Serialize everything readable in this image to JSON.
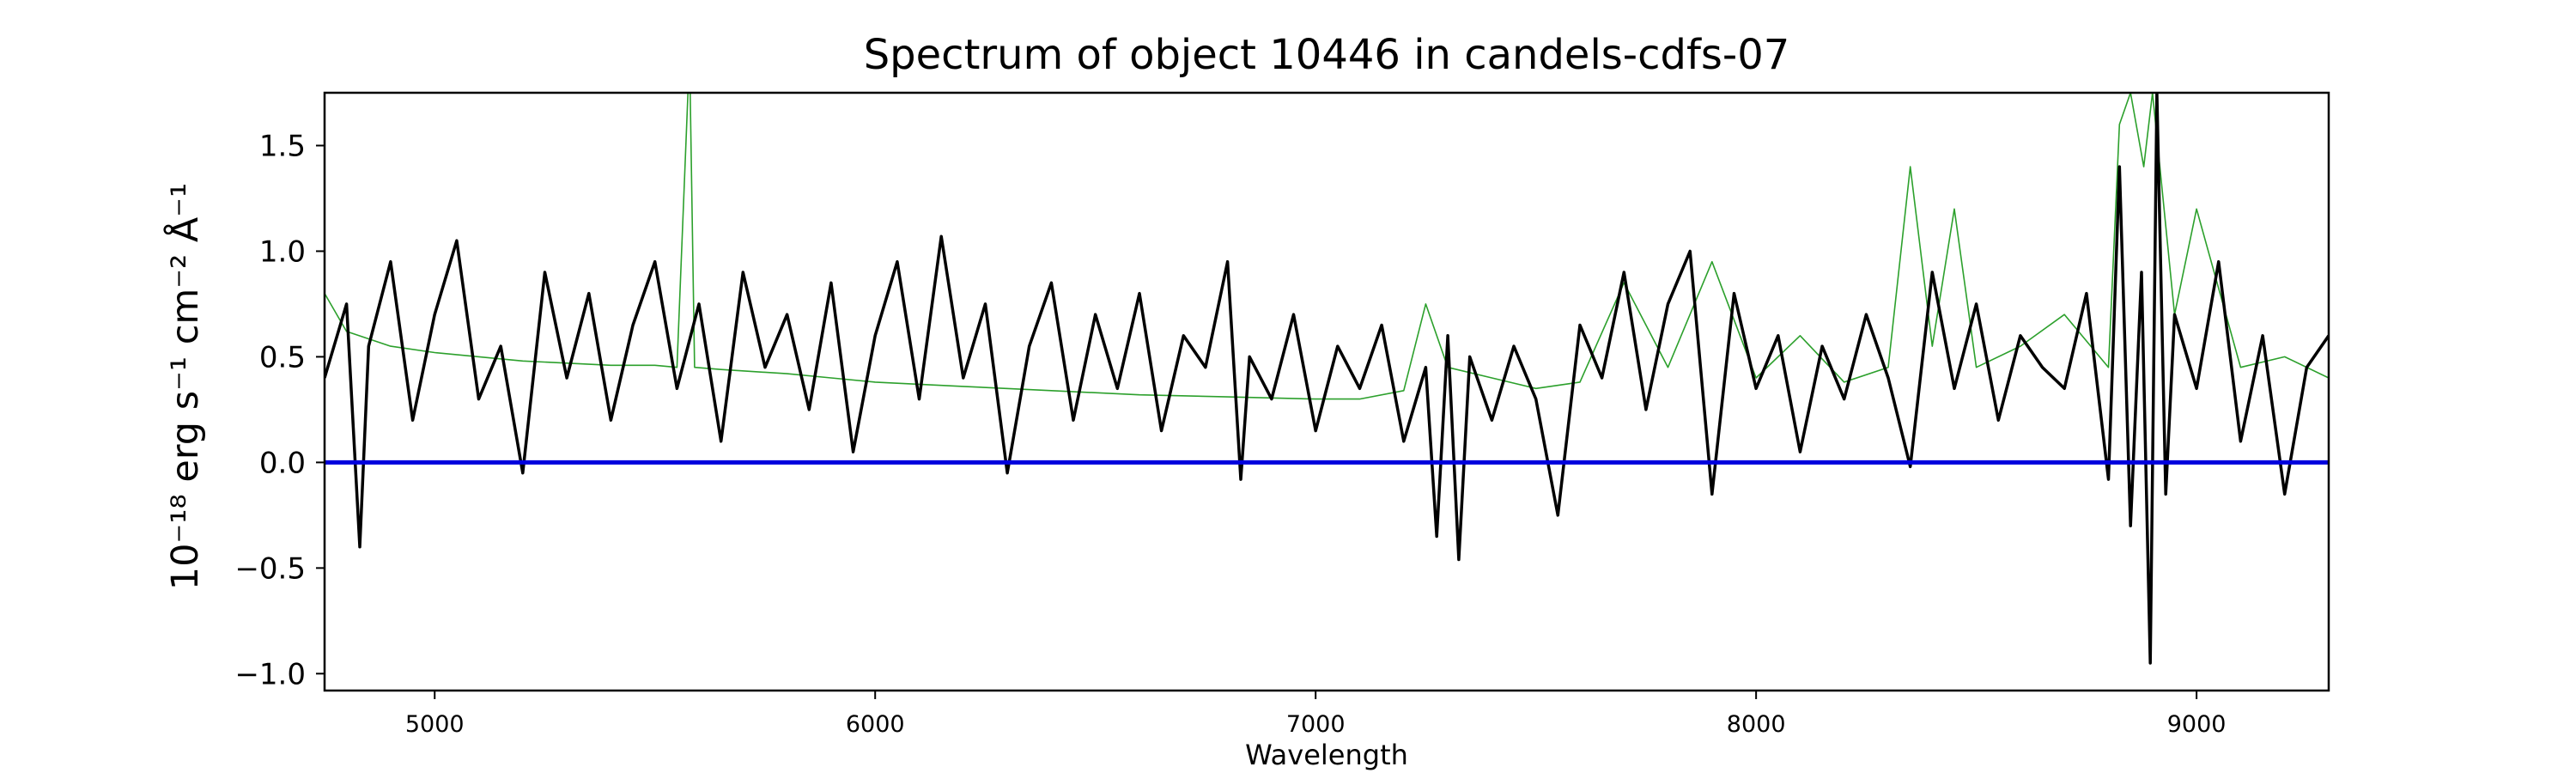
{
  "chart_data": {
    "type": "line",
    "title": "Spectrum of object 10446 in candels-cdfs-07",
    "xlabel": "Wavelength",
    "ylabel": "10⁻¹⁸ erg s⁻¹ cm⁻² Å⁻¹",
    "xlim": [
      4750,
      9300
    ],
    "ylim": [
      -1.08,
      1.75
    ],
    "x_ticks": [
      5000,
      6000,
      7000,
      8000,
      9000
    ],
    "x_tick_labels": [
      "5000",
      "6000",
      "7000",
      "8000",
      "9000"
    ],
    "y_ticks": [
      -1.0,
      -0.5,
      0.0,
      0.5,
      1.0,
      1.5
    ],
    "y_tick_labels": [
      "−1.0",
      "−0.5",
      "0.0",
      "0.5",
      "1.0",
      "1.5"
    ],
    "grid": false,
    "colors": {
      "flux": "#000000",
      "model": "#2ca02c",
      "zero": "#0000dd"
    },
    "series": [
      {
        "role": "flux",
        "x": [
          4750,
          4800,
          4830,
          4850,
          4900,
          4950,
          5000,
          5050,
          5100,
          5150,
          5200,
          5250,
          5300,
          5350,
          5400,
          5450,
          5500,
          5550,
          5600,
          5650,
          5700,
          5750,
          5800,
          5850,
          5900,
          5950,
          6000,
          6050,
          6100,
          6150,
          6200,
          6250,
          6300,
          6350,
          6400,
          6450,
          6500,
          6550,
          6600,
          6650,
          6700,
          6750,
          6800,
          6830,
          6850,
          6900,
          6950,
          7000,
          7050,
          7100,
          7150,
          7200,
          7250,
          7275,
          7300,
          7325,
          7350,
          7400,
          7450,
          7500,
          7550,
          7600,
          7650,
          7700,
          7750,
          7800,
          7850,
          7900,
          7950,
          8000,
          8050,
          8100,
          8150,
          8200,
          8250,
          8300,
          8350,
          8400,
          8450,
          8500,
          8550,
          8600,
          8650,
          8700,
          8750,
          8800,
          8825,
          8850,
          8875,
          8895,
          8910,
          8930,
          8950,
          9000,
          9050,
          9100,
          9150,
          9200,
          9250,
          9300
        ],
        "y": [
          0.4,
          0.75,
          -0.4,
          0.55,
          0.95,
          0.2,
          0.7,
          1.05,
          0.3,
          0.55,
          -0.05,
          0.9,
          0.4,
          0.8,
          0.2,
          0.65,
          0.95,
          0.35,
          0.75,
          0.1,
          0.9,
          0.45,
          0.7,
          0.25,
          0.85,
          0.05,
          0.6,
          0.95,
          0.3,
          1.07,
          0.4,
          0.75,
          -0.05,
          0.55,
          0.85,
          0.2,
          0.7,
          0.35,
          0.8,
          0.15,
          0.6,
          0.45,
          0.95,
          -0.08,
          0.5,
          0.3,
          0.7,
          0.15,
          0.55,
          0.35,
          0.65,
          0.1,
          0.45,
          -0.35,
          0.6,
          -0.46,
          0.5,
          0.2,
          0.55,
          0.3,
          -0.25,
          0.65,
          0.4,
          0.9,
          0.25,
          0.75,
          1.0,
          -0.15,
          0.8,
          0.35,
          0.6,
          0.05,
          0.55,
          0.3,
          0.7,
          0.4,
          -0.02,
          0.9,
          0.35,
          0.75,
          0.2,
          0.6,
          0.45,
          0.35,
          0.8,
          -0.08,
          1.4,
          -0.3,
          0.9,
          -0.95,
          1.75,
          -0.15,
          0.7,
          0.35,
          0.95,
          0.1,
          0.6,
          -0.15,
          0.45,
          0.6
        ]
      },
      {
        "role": "model",
        "x": [
          4750,
          4800,
          4900,
          5000,
          5200,
          5400,
          5500,
          5550,
          5575,
          5580,
          5590,
          5650,
          5800,
          5900,
          6000,
          6200,
          6400,
          6600,
          6800,
          7000,
          7100,
          7200,
          7250,
          7300,
          7400,
          7500,
          7600,
          7700,
          7800,
          7900,
          8000,
          8100,
          8200,
          8300,
          8350,
          8400,
          8450,
          8500,
          8600,
          8700,
          8800,
          8825,
          8850,
          8880,
          8900,
          8950,
          9000,
          9100,
          9200,
          9300
        ],
        "y": [
          0.8,
          0.62,
          0.55,
          0.52,
          0.48,
          0.46,
          0.46,
          0.45,
          1.75,
          1.75,
          0.45,
          0.44,
          0.42,
          0.4,
          0.38,
          0.36,
          0.34,
          0.32,
          0.31,
          0.3,
          0.3,
          0.34,
          0.75,
          0.45,
          0.4,
          0.35,
          0.38,
          0.85,
          0.45,
          0.95,
          0.4,
          0.6,
          0.38,
          0.45,
          1.4,
          0.55,
          1.2,
          0.45,
          0.55,
          0.7,
          0.45,
          1.6,
          1.75,
          1.4,
          1.75,
          0.7,
          1.2,
          0.45,
          0.5,
          0.4
        ]
      }
    ],
    "zero_line_y": 0.0
  }
}
